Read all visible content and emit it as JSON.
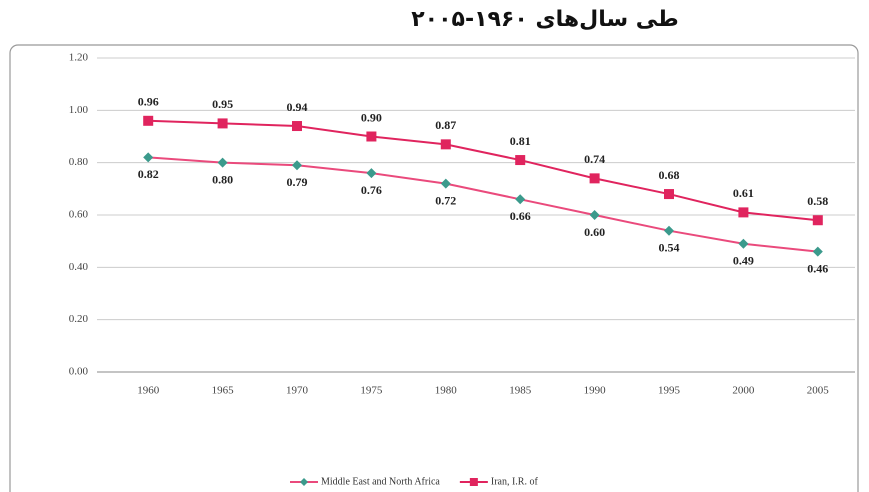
{
  "chart_data": {
    "type": "line",
    "title": "طی سال‌های ۱۹۶۰-۲۰۰۵",
    "categories": [
      "1960",
      "1965",
      "1970",
      "1975",
      "1980",
      "1985",
      "1990",
      "1995",
      "2000",
      "2005"
    ],
    "series": [
      {
        "name": "Middle East and North Africa",
        "color": "#ea4a7c",
        "marker_color": "#3b9a8c",
        "marker": "diamond",
        "values": [
          0.82,
          0.8,
          0.79,
          0.76,
          0.72,
          0.66,
          0.6,
          0.54,
          0.49,
          0.46
        ],
        "value_labels": [
          "0.82",
          "0.80",
          "0.79",
          "0.76",
          "0.72",
          "0.66",
          "0.60",
          "0.54",
          "0.49",
          "0.46"
        ]
      },
      {
        "name": "Iran, I.R. of",
        "color": "#e0245e",
        "marker_color": "#e0245e",
        "marker": "square",
        "values": [
          0.96,
          0.95,
          0.94,
          0.9,
          0.87,
          0.81,
          0.74,
          0.68,
          0.61,
          0.58
        ],
        "value_labels": [
          "0.96",
          "0.95",
          "0.94",
          "0.90",
          "0.87",
          "0.81",
          "0.74",
          "0.68",
          "0.61",
          "0.58"
        ]
      }
    ],
    "ylim": [
      0,
      1.2
    ],
    "yticks": [
      {
        "value": 0,
        "label": "0.00"
      },
      {
        "value": 0.2,
        "label": "0.20"
      },
      {
        "value": 0.4,
        "label": "0.40"
      },
      {
        "value": 0.6,
        "label": "0.60"
      },
      {
        "value": 0.8,
        "label": "0.80"
      },
      {
        "value": 1,
        "label": "1.00"
      },
      {
        "value": 1.2,
        "label": "1.20"
      }
    ],
    "grid": true,
    "legend": "bottom"
  }
}
